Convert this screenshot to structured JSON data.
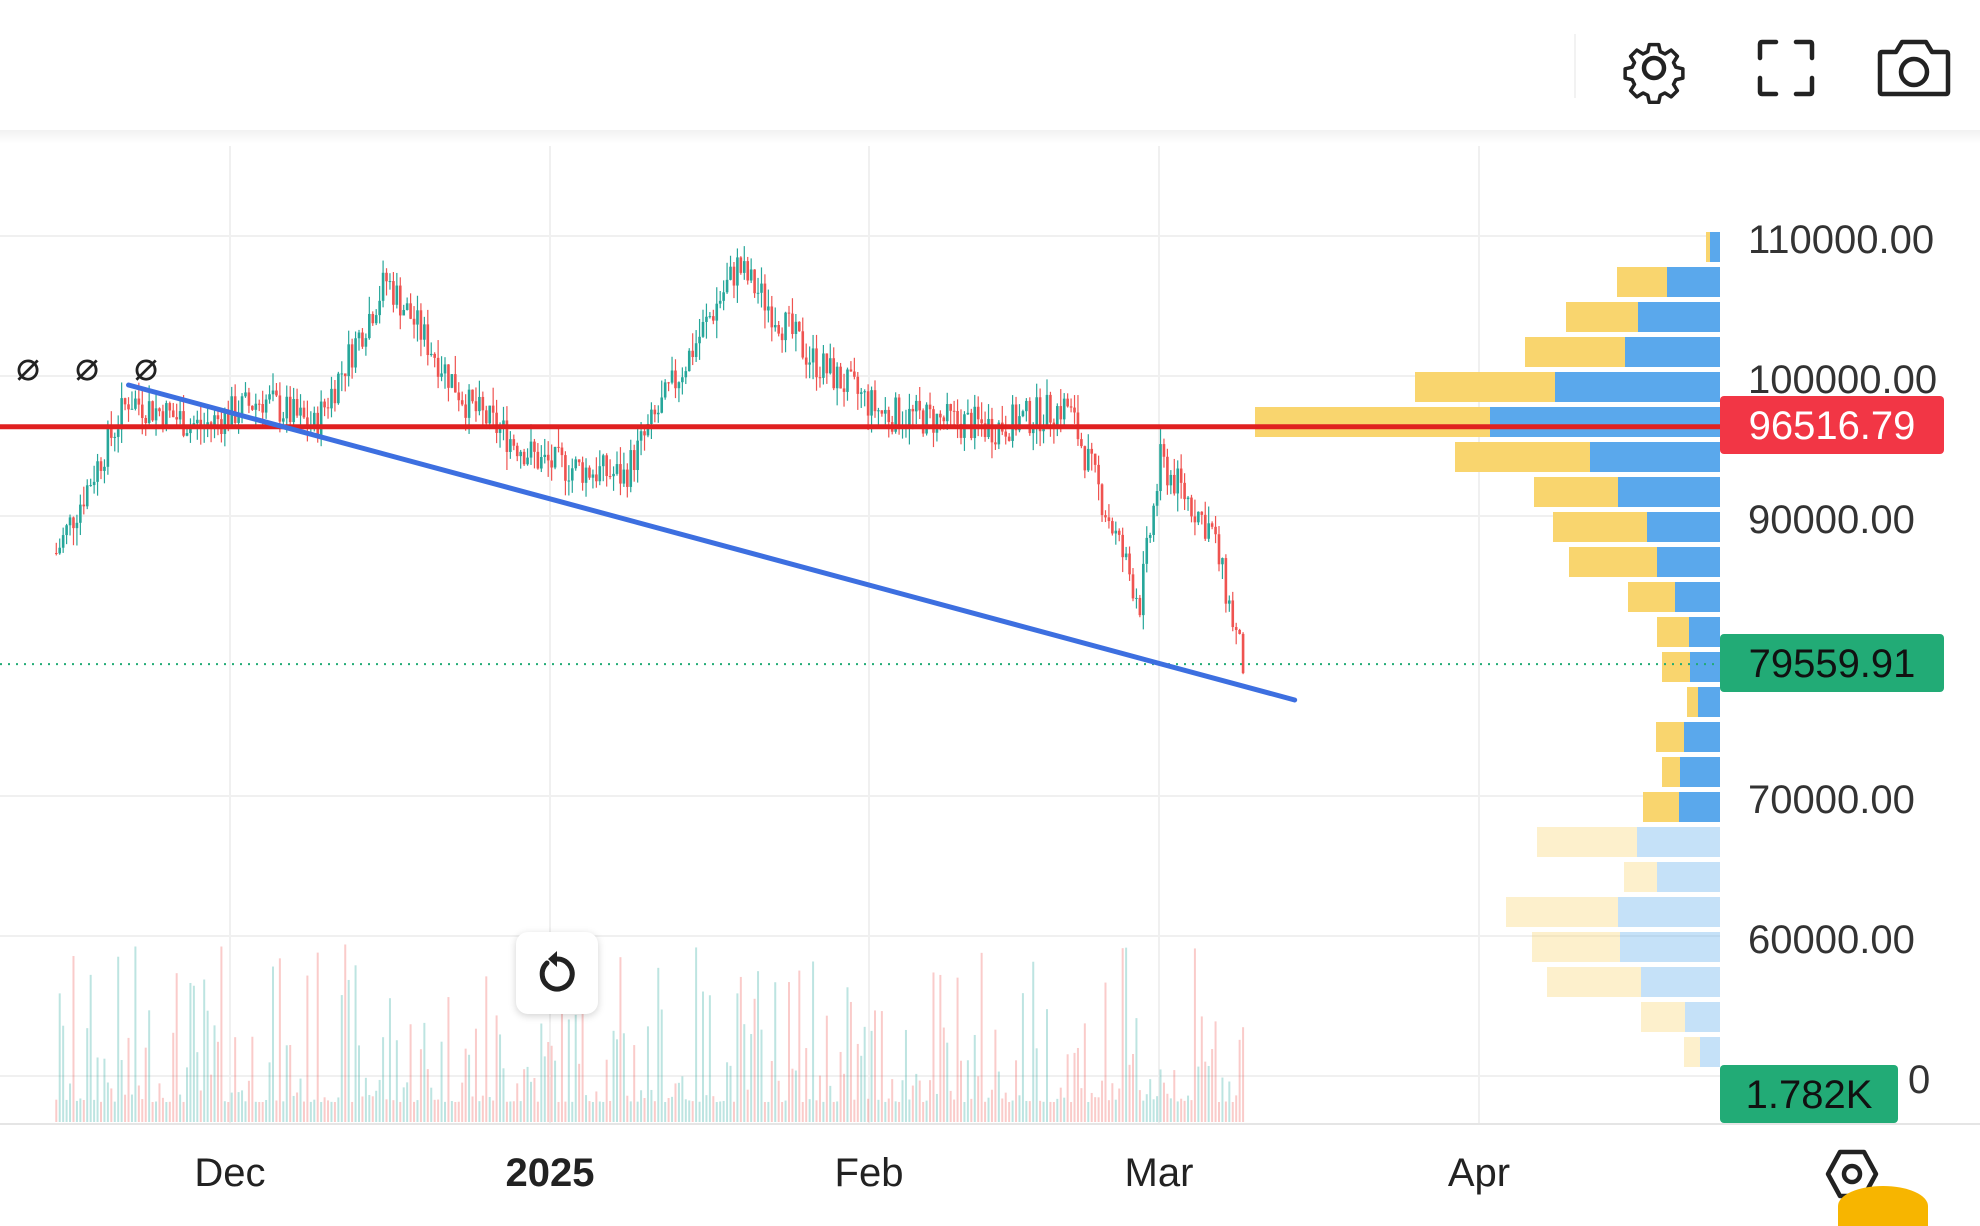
{
  "toolbar": {
    "settings_icon": "gear-icon",
    "fullscreen_icon": "fullscreen-icon",
    "screenshot_icon": "camera-icon"
  },
  "colors": {
    "up_candle": "#26a69a",
    "down_candle": "#ef5350",
    "trendline": "#3d6fe0",
    "support_line": "#e02020",
    "price_badge_red": "#f23645",
    "price_badge_green": "#22ab76",
    "vp_up": "#f9d56e",
    "vp_down": "#5aa8ec"
  },
  "chart_data": {
    "type": "candlestick",
    "title": "",
    "x_axis": {
      "ticks": [
        "Dec",
        "2025",
        "Feb",
        "Mar",
        "Apr"
      ]
    },
    "y_axis": {
      "ticks": [
        "110000.00",
        "100000.00",
        "90000.00",
        "70000.00",
        "60000.00"
      ],
      "range": [
        50000,
        110000
      ]
    },
    "ohlc_close_approx": [
      {
        "date": "2024-11-15",
        "close": 87500
      },
      {
        "date": "2024-11-22",
        "close": 98500
      },
      {
        "date": "2024-11-29",
        "close": 96500
      },
      {
        "date": "2024-12-05",
        "close": 98500
      },
      {
        "date": "2024-12-10",
        "close": 96500
      },
      {
        "date": "2024-12-17",
        "close": 107000
      },
      {
        "date": "2024-12-25",
        "close": 98000
      },
      {
        "date": "2025-01-01",
        "close": 94000
      },
      {
        "date": "2025-01-09",
        "close": 93000
      },
      {
        "date": "2025-01-20",
        "close": 108000
      },
      {
        "date": "2025-01-27",
        "close": 101500
      },
      {
        "date": "2025-02-03",
        "close": 97500
      },
      {
        "date": "2025-02-14",
        "close": 96500
      },
      {
        "date": "2025-02-21",
        "close": 98000
      },
      {
        "date": "2025-02-28",
        "close": 84000
      },
      {
        "date": "2025-03-02",
        "close": 94000
      },
      {
        "date": "2025-03-07",
        "close": 89000
      },
      {
        "date": "2025-03-10",
        "close": 79560
      }
    ],
    "lines": [
      {
        "kind": "horizontal",
        "price": 96516.79
      },
      {
        "kind": "trendline",
        "from": {
          "date": "2024-11-22",
          "price": 99500
        },
        "to": {
          "date": "2025-03-15",
          "price": 77000
        }
      }
    ],
    "price_labels": {
      "level": "96516.79",
      "last_price": "79559.91",
      "volume": "1.782K"
    },
    "partial_tick": "0",
    "drawing_marks": [
      "⌀",
      "⌀",
      "⌀"
    ],
    "volume_profile": [
      {
        "price": 109500,
        "up": 4,
        "down": 10
      },
      {
        "price": 107000,
        "up": 50,
        "down": 53
      },
      {
        "price": 104500,
        "up": 72,
        "down": 82
      },
      {
        "price": 102000,
        "up": 100,
        "down": 95
      },
      {
        "price": 99500,
        "up": 140,
        "down": 165
      },
      {
        "price": 97000,
        "up": 235,
        "down": 230
      },
      {
        "price": 94500,
        "up": 135,
        "down": 130
      },
      {
        "price": 92000,
        "up": 84,
        "down": 102
      },
      {
        "price": 89500,
        "up": 94,
        "down": 73
      },
      {
        "price": 87000,
        "up": 88,
        "down": 63
      },
      {
        "price": 84500,
        "up": 47,
        "down": 45
      },
      {
        "price": 82000,
        "up": 32,
        "down": 31
      },
      {
        "price": 79500,
        "up": 28,
        "down": 30
      },
      {
        "price": 77000,
        "up": 11,
        "down": 22
      },
      {
        "price": 74500,
        "up": 28,
        "down": 36
      },
      {
        "price": 72000,
        "up": 18,
        "down": 40
      },
      {
        "price": 69500,
        "up": 36,
        "down": 41
      },
      {
        "price": 67000,
        "up": 100,
        "down": 83,
        "faded": true
      },
      {
        "price": 64500,
        "up": 33,
        "down": 63,
        "faded": true
      },
      {
        "price": 62000,
        "up": 112,
        "down": 102,
        "faded": true
      },
      {
        "price": 59500,
        "up": 88,
        "down": 100,
        "faded": true
      },
      {
        "price": 57000,
        "up": 94,
        "down": 79,
        "faded": true
      },
      {
        "price": 54500,
        "up": 44,
        "down": 35,
        "faded": true
      },
      {
        "price": 52000,
        "up": 16,
        "down": 20,
        "faded": true
      }
    ]
  }
}
